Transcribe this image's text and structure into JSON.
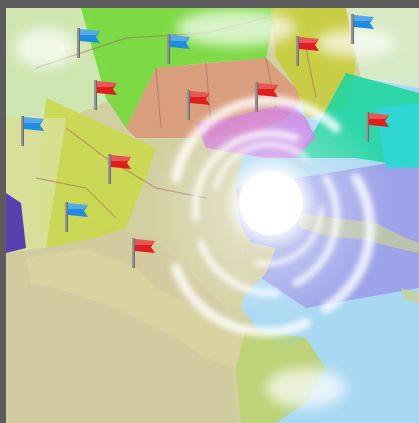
{
  "scene": {
    "view": "hurricane-strategy-map",
    "colors": {
      "frame": "#5c5c5c",
      "ocean_light": "#a9d8f2",
      "ocean_purple": "#b89be6",
      "land_tan": "#d6cf98",
      "sector_green": "#73d93a",
      "sector_lime": "#c8d84a",
      "sector_salmon": "#d99a7a",
      "sector_teal": "#1fd6a0",
      "sector_magenta": "#cf6fe0",
      "sector_indigo": "#5a3fb0",
      "flag_blue": "#1e8de0",
      "flag_red": "#e01e1e",
      "storm_core": "#ffffff"
    }
  },
  "storm": {
    "label": "hurricane"
  },
  "flags": [
    {
      "id": "flag-1",
      "team": "blue"
    },
    {
      "id": "flag-2",
      "team": "blue"
    },
    {
      "id": "flag-3",
      "team": "blue"
    },
    {
      "id": "flag-4",
      "team": "red"
    },
    {
      "id": "flag-5",
      "team": "blue"
    },
    {
      "id": "flag-6",
      "team": "red"
    },
    {
      "id": "flag-7",
      "team": "red"
    },
    {
      "id": "flag-8",
      "team": "red"
    },
    {
      "id": "flag-9",
      "team": "red"
    },
    {
      "id": "flag-10",
      "team": "red"
    },
    {
      "id": "flag-11",
      "team": "blue"
    },
    {
      "id": "flag-12",
      "team": "red"
    }
  ]
}
